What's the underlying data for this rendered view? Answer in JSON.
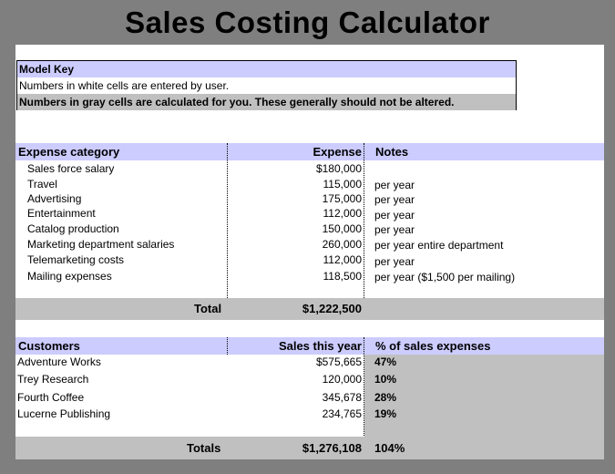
{
  "title": "Sales Costing Calculator",
  "model_key": {
    "title": "Model Key",
    "white_note": "Numbers in white cells are entered by user.",
    "gray_note": "Numbers in gray cells are calculated for you. These generally should not be altered."
  },
  "expenses": {
    "headers": {
      "category": "Expense category",
      "expense": "Expense",
      "notes": "Notes"
    },
    "rows": [
      {
        "category": "Sales force salary",
        "expense": "$180,000",
        "notes": ""
      },
      {
        "category": "Travel",
        "expense": "115,000",
        "notes": "per year"
      },
      {
        "category": "Advertising",
        "expense": "175,000",
        "notes": "per year"
      },
      {
        "category": "Entertainment",
        "expense": "112,000",
        "notes": "per year"
      },
      {
        "category": "Catalog production",
        "expense": "150,000",
        "notes": "per year"
      },
      {
        "category": "Marketing department salaries",
        "expense": "260,000",
        "notes": "per year entire department"
      },
      {
        "category": "Telemarketing costs",
        "expense": "112,000",
        "notes": "per year"
      },
      {
        "category": "Mailing expenses",
        "expense": "118,500",
        "notes": "per year ($1,500 per mailing)"
      }
    ],
    "total_label": "Total",
    "total_value": "$1,222,500"
  },
  "customers": {
    "headers": {
      "customer": "Customers",
      "sales": "Sales this year",
      "pct": "% of sales expenses"
    },
    "rows": [
      {
        "customer": "Adventure Works",
        "sales": "$575,665",
        "pct": "47%"
      },
      {
        "customer": "Trey Research",
        "sales": "120,000",
        "pct": "10%"
      },
      {
        "customer": "Fourth Coffee",
        "sales": "345,678",
        "pct": "28%"
      },
      {
        "customer": "Lucerne Publishing",
        "sales": "234,765",
        "pct": "19%"
      }
    ],
    "totals_label": "Totals",
    "totals_sales": "$1,276,108",
    "totals_pct": "104%"
  }
}
